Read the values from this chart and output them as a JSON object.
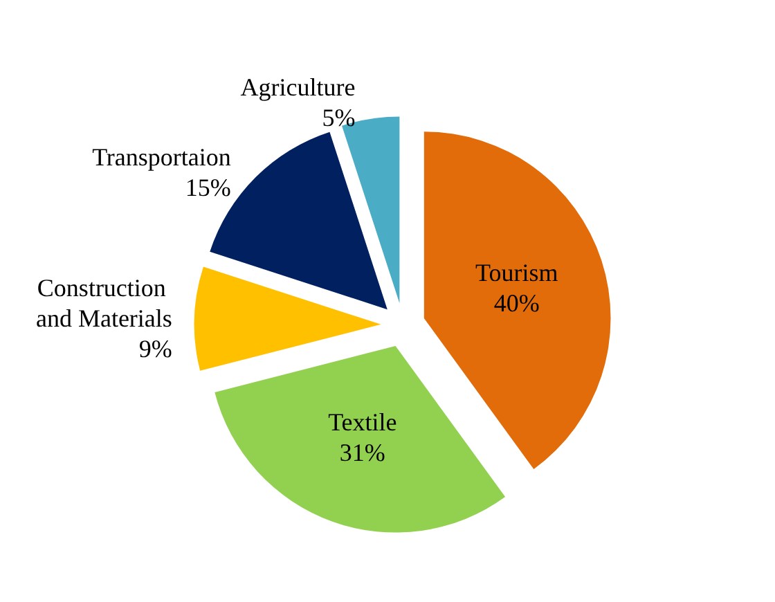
{
  "chart_data": {
    "type": "pie",
    "categories": [
      "Tourism",
      "Textile",
      "Construction and Materials",
      "Transportaion",
      "Agriculture"
    ],
    "values": [
      40,
      31,
      9,
      15,
      5
    ],
    "colors": [
      "#e36c0a",
      "#92d050",
      "#ffc000",
      "#002060",
      "#4bacc6"
    ],
    "value_labels": [
      "40%",
      "31%",
      "9%",
      "15%",
      "5%"
    ],
    "legend": false
  }
}
